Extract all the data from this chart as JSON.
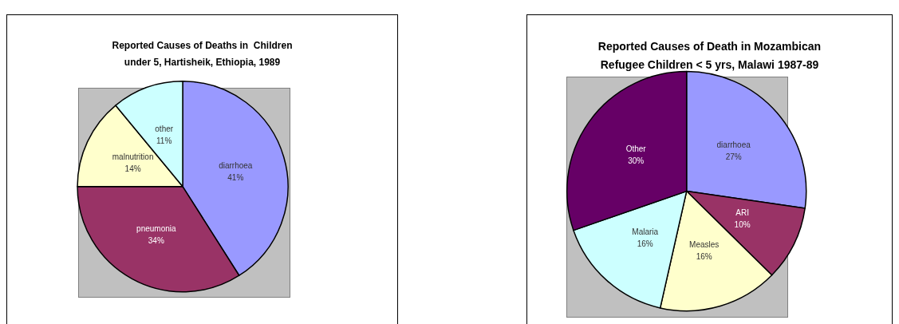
{
  "chart_data": [
    {
      "type": "pie",
      "title": "Reported Causes of Deaths in  Children\nunder 5, Hartisheik, Ethiopia, 1989",
      "categories": [
        "diarrhoea",
        "pneumonia",
        "malnutrition",
        "other"
      ],
      "values": [
        41,
        34,
        14,
        11
      ],
      "value_labels": [
        "41%",
        "34%",
        "14%",
        "11%"
      ],
      "colors": [
        "#9999ff",
        "#993366",
        "#ffffcc",
        "#ccffff"
      ]
    },
    {
      "type": "pie",
      "title": "Reported Causes of Death in Mozambican\nRefugee Children < 5 yrs, Malawi 1987-89",
      "categories": [
        "diarrhoea",
        "ARI",
        "Measles",
        "Malaria",
        "Other"
      ],
      "values": [
        27,
        10,
        16,
        16,
        30
      ],
      "value_labels": [
        "27%",
        "10%",
        "16%",
        "16%",
        "30%"
      ],
      "colors": [
        "#9999ff",
        "#993366",
        "#ffffcc",
        "#ccffff",
        "#660066"
      ]
    }
  ]
}
